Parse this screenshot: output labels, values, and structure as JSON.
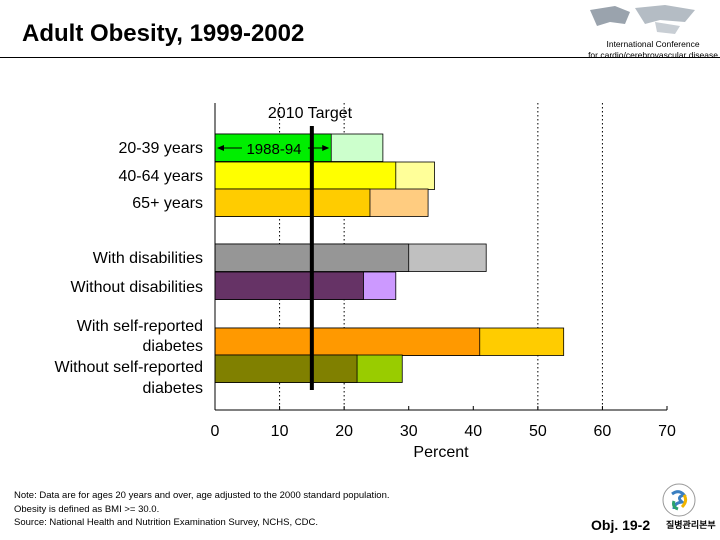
{
  "header": {
    "title": "Adult Obesity, 1999-2002",
    "conference_line1": "International Conference",
    "conference_line2": "for cardio/cerebrovascular disease"
  },
  "chart_data": {
    "type": "bar",
    "orientation": "horizontal",
    "categories": [
      "20-39 years",
      "40-64 years",
      "65+ years",
      "With disabilities",
      "Without disabilities",
      "With self-reported diabetes",
      "Without self-reported diabetes"
    ],
    "category_lines": [
      [
        "20-39 years"
      ],
      [
        "40-64 years"
      ],
      [
        "65+ years"
      ],
      [
        "With disabilities"
      ],
      [
        "Without disabilities"
      ],
      [
        "With self-reported",
        "diabetes"
      ],
      [
        "Without self-reported",
        "diabetes"
      ]
    ],
    "groups": [
      [
        0,
        1,
        2
      ],
      [
        3,
        4
      ],
      [
        5,
        6
      ]
    ],
    "series": [
      {
        "name": "1988-94",
        "values": [
          18,
          28,
          24,
          30,
          23,
          41,
          22
        ]
      },
      {
        "values": [
          26,
          34,
          33,
          42,
          28,
          54,
          29
        ]
      }
    ],
    "colors_dark": [
      "#00ee00",
      "#ffff00",
      "#ffcc00",
      "#969696",
      "#663366",
      "#ff9900",
      "#808000"
    ],
    "colors_light": [
      "#ccffcc",
      "#ffff99",
      "#ffcc80",
      "#c0c0c0",
      "#cc99ff",
      "#ffcc00",
      "#99cc00"
    ],
    "target": {
      "label": "2010 Target",
      "value": 15
    },
    "period_label": "1988-94",
    "xlabel": "Percent",
    "xlim": [
      0,
      70
    ],
    "xticks": [
      0,
      10,
      20,
      30,
      40,
      50,
      60,
      70
    ],
    "grid_x": [
      10,
      20,
      50,
      60
    ]
  },
  "footer": {
    "notes": [
      "Note: Data are for ages 20 years and over, age adjusted to the 2000 standard population.",
      "Obesity is defined as BMI >= 30.0.",
      "Source: National Health and Nutrition Examination Survey, NCHS, CDC."
    ],
    "obj": "Obj. 19-2",
    "agency": "질병관리본부"
  }
}
